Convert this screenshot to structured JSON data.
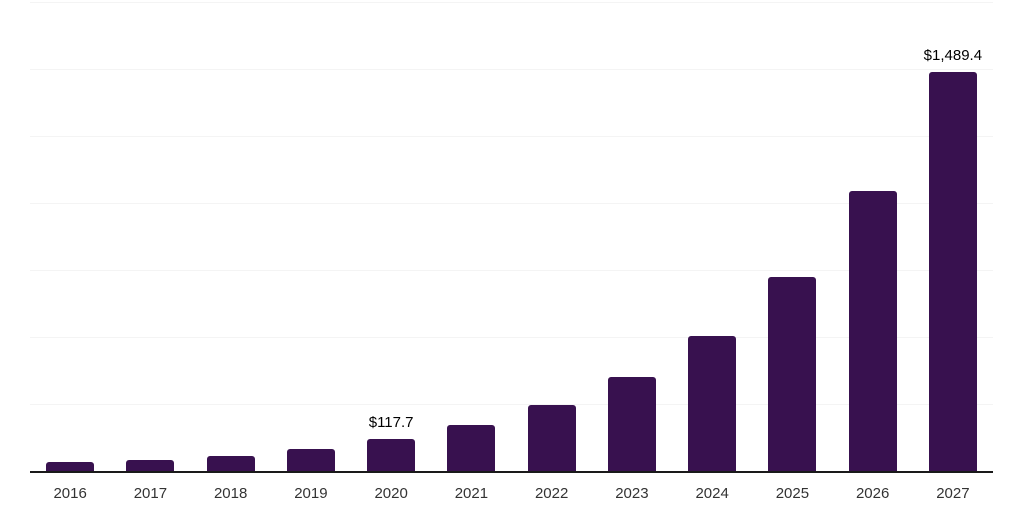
{
  "chart_data": {
    "type": "bar",
    "title": "",
    "xlabel": "",
    "ylabel": "",
    "categories": [
      "2016",
      "2017",
      "2018",
      "2019",
      "2020",
      "2021",
      "2022",
      "2023",
      "2024",
      "2025",
      "2026",
      "2027"
    ],
    "values": [
      33,
      42,
      56,
      84,
      117.7,
      172,
      246,
      352,
      505,
      725,
      1045,
      1489.4
    ],
    "data_labels": [
      "",
      "",
      "",
      "",
      "$117.7",
      "",
      "",
      "",
      "",
      "",
      "",
      "$1,489.4"
    ],
    "ylim": [
      0,
      1750
    ],
    "gridline_interval": 250,
    "grid": "on",
    "legend": "none",
    "value_prefix": "$"
  },
  "colors": {
    "background": "#ffffff",
    "bar": "#38114f",
    "axis": "#1a1a1a",
    "gridline": "#f4f4f4",
    "data_label": "#000000",
    "tick_label": "#333333"
  }
}
